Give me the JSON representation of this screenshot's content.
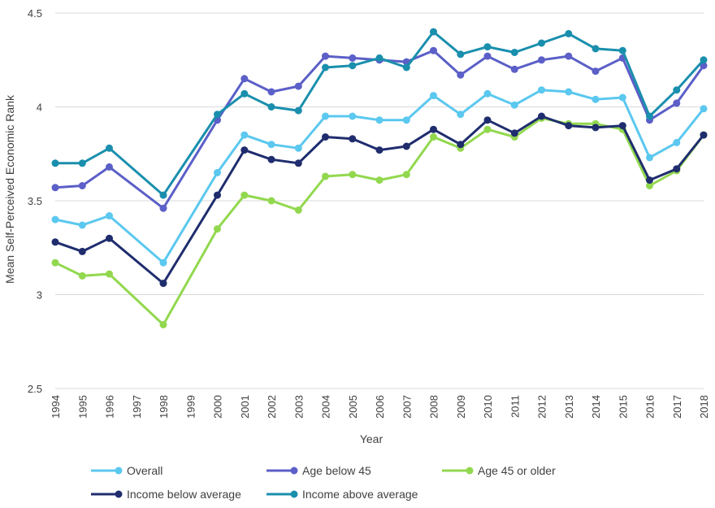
{
  "chart_data": {
    "type": "line",
    "title": "",
    "xlabel": "Year",
    "ylabel": "Mean Self-Perceived Economic Rank",
    "ylim": [
      2.5,
      4.5
    ],
    "yticks": [
      "2.5",
      "3",
      "3.5",
      "4",
      "4.5"
    ],
    "ytick_values": [
      2.5,
      3,
      3.5,
      4,
      4.5
    ],
    "grid": true,
    "legend_position": "bottom",
    "x": [
      "1994",
      "1995",
      "1996",
      "1997",
      "1998",
      "1999",
      "2000",
      "2001",
      "2002",
      "2003",
      "2004",
      "2005",
      "2006",
      "2007",
      "2008",
      "2009",
      "2010",
      "2011",
      "2012",
      "2013",
      "2014",
      "2015",
      "2016",
      "2017",
      "2018"
    ],
    "series": [
      {
        "name": "Overall",
        "color": "#5bc8ef",
        "values": [
          3.4,
          3.37,
          3.42,
          null,
          3.17,
          null,
          3.65,
          3.85,
          3.8,
          3.78,
          3.95,
          3.95,
          3.93,
          3.93,
          4.06,
          3.96,
          4.07,
          4.01,
          4.09,
          4.08,
          4.04,
          4.05,
          3.73,
          3.81,
          3.99
        ]
      },
      {
        "name": "Age below 45",
        "color": "#5b5fc7",
        "values": [
          3.57,
          3.58,
          3.68,
          null,
          3.46,
          null,
          3.93,
          4.15,
          4.08,
          4.11,
          4.27,
          4.26,
          4.25,
          4.24,
          4.3,
          4.17,
          4.27,
          4.2,
          4.25,
          4.27,
          4.19,
          4.26,
          3.93,
          4.02,
          4.22
        ]
      },
      {
        "name": "Age 45 or older",
        "color": "#92d84f",
        "values": [
          3.17,
          3.1,
          3.11,
          null,
          2.84,
          null,
          3.35,
          3.53,
          3.5,
          3.45,
          3.63,
          3.64,
          3.61,
          3.64,
          3.84,
          3.78,
          3.88,
          3.84,
          3.94,
          3.91,
          3.91,
          3.88,
          3.58,
          3.66,
          3.85
        ]
      },
      {
        "name": "Income below average",
        "color": "#1f2d6e",
        "values": [
          3.28,
          3.23,
          3.3,
          null,
          3.06,
          null,
          3.53,
          3.77,
          3.72,
          3.7,
          3.84,
          3.83,
          3.77,
          3.79,
          3.88,
          3.8,
          3.93,
          3.86,
          3.95,
          3.9,
          3.89,
          3.9,
          3.61,
          3.67,
          3.85
        ]
      },
      {
        "name": "Income above average",
        "color": "#1a8fad",
        "values": [
          3.7,
          3.7,
          3.78,
          null,
          3.53,
          null,
          3.96,
          4.07,
          4.0,
          3.98,
          4.21,
          4.22,
          4.26,
          4.21,
          4.4,
          4.28,
          4.32,
          4.29,
          4.34,
          4.39,
          4.31,
          4.3,
          3.95,
          4.09,
          4.25
        ]
      }
    ]
  }
}
